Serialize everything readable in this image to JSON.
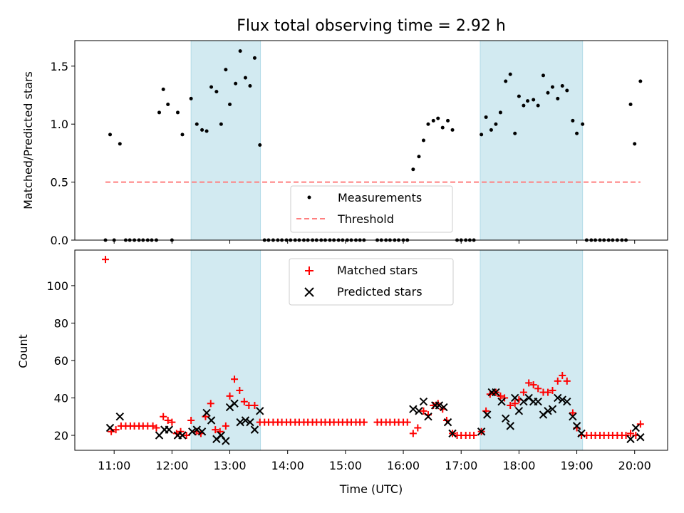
{
  "chart_data": {
    "title": "Flux total observing time = 2.92 h",
    "xlabel": "Time (UTC)",
    "x_ticks": [
      "11:00",
      "12:00",
      "13:00",
      "14:00",
      "15:00",
      "16:00",
      "17:00",
      "18:00",
      "19:00",
      "20:00"
    ],
    "x_range_hours": [
      10.32,
      20.57
    ],
    "shaded_intervals_hours": [
      [
        12.33,
        13.53
      ],
      [
        17.33,
        19.1
      ]
    ],
    "shade_color": "#add8e6",
    "top": {
      "type": "scatter",
      "ylabel": "Matched/Predicted stars",
      "ylim": [
        0,
        1.72
      ],
      "yticks": [
        "0.0",
        "0.5",
        "1.0",
        "1.5"
      ],
      "legend": {
        "placement": "lower-center",
        "items": [
          "Measurements",
          "Threshold"
        ]
      },
      "threshold": {
        "name": "Threshold",
        "value": 0.5,
        "x_range": [
          10.85,
          20.1
        ],
        "color": "#ff7f7f"
      },
      "measurements": {
        "name": "Measurements",
        "color": "#000000",
        "points": [
          [
            10.85,
            0
          ],
          [
            10.93,
            0.91
          ],
          [
            11.0,
            0
          ],
          [
            11.1,
            0.83
          ],
          [
            11.2,
            0
          ],
          [
            11.27,
            0
          ],
          [
            11.35,
            0
          ],
          [
            11.43,
            0
          ],
          [
            11.5,
            0
          ],
          [
            11.58,
            0
          ],
          [
            11.65,
            0
          ],
          [
            11.73,
            0
          ],
          [
            11.78,
            1.1
          ],
          [
            11.85,
            1.3
          ],
          [
            11.93,
            1.17
          ],
          [
            12.0,
            0
          ],
          [
            12.1,
            1.1
          ],
          [
            12.18,
            0.91
          ],
          [
            12.33,
            1.22
          ],
          [
            12.43,
            1.0
          ],
          [
            12.52,
            0.95
          ],
          [
            12.6,
            0.94
          ],
          [
            12.68,
            1.32
          ],
          [
            12.77,
            1.28
          ],
          [
            12.85,
            1.0
          ],
          [
            12.93,
            1.47
          ],
          [
            13.0,
            1.17
          ],
          [
            13.1,
            1.35
          ],
          [
            13.18,
            1.63
          ],
          [
            13.27,
            1.4
          ],
          [
            13.35,
            1.33
          ],
          [
            13.43,
            1.57
          ],
          [
            13.52,
            0.82
          ],
          [
            13.6,
            0
          ],
          [
            13.67,
            0
          ],
          [
            13.75,
            0
          ],
          [
            13.83,
            0
          ],
          [
            13.9,
            0
          ],
          [
            13.98,
            0
          ],
          [
            14.05,
            0
          ],
          [
            14.13,
            0
          ],
          [
            14.2,
            0
          ],
          [
            14.28,
            0
          ],
          [
            14.35,
            0
          ],
          [
            14.43,
            0
          ],
          [
            14.5,
            0
          ],
          [
            14.58,
            0
          ],
          [
            14.65,
            0
          ],
          [
            14.73,
            0
          ],
          [
            14.8,
            0
          ],
          [
            14.88,
            0
          ],
          [
            14.95,
            0
          ],
          [
            15.03,
            0
          ],
          [
            15.1,
            0
          ],
          [
            15.18,
            0
          ],
          [
            15.25,
            0
          ],
          [
            15.32,
            0
          ],
          [
            15.55,
            0
          ],
          [
            15.62,
            0
          ],
          [
            15.7,
            0
          ],
          [
            15.77,
            0
          ],
          [
            15.85,
            0
          ],
          [
            15.92,
            0
          ],
          [
            16.0,
            0
          ],
          [
            16.07,
            0
          ],
          [
            16.17,
            0.61
          ],
          [
            16.27,
            0.72
          ],
          [
            16.35,
            0.86
          ],
          [
            16.43,
            1.0
          ],
          [
            16.52,
            1.03
          ],
          [
            16.6,
            1.05
          ],
          [
            16.68,
            0.97
          ],
          [
            16.77,
            1.03
          ],
          [
            16.85,
            0.95
          ],
          [
            16.93,
            0
          ],
          [
            17.0,
            0
          ],
          [
            17.08,
            0
          ],
          [
            17.15,
            0
          ],
          [
            17.22,
            0
          ],
          [
            17.35,
            0.91
          ],
          [
            17.43,
            1.06
          ],
          [
            17.52,
            0.95
          ],
          [
            17.6,
            1.0
          ],
          [
            17.68,
            1.1
          ],
          [
            17.77,
            1.37
          ],
          [
            17.85,
            1.43
          ],
          [
            17.93,
            0.92
          ],
          [
            18.0,
            1.24
          ],
          [
            18.08,
            1.16
          ],
          [
            18.15,
            1.2
          ],
          [
            18.25,
            1.21
          ],
          [
            18.33,
            1.16
          ],
          [
            18.42,
            1.42
          ],
          [
            18.5,
            1.27
          ],
          [
            18.58,
            1.32
          ],
          [
            18.67,
            1.22
          ],
          [
            18.75,
            1.33
          ],
          [
            18.83,
            1.29
          ],
          [
            18.93,
            1.03
          ],
          [
            19.0,
            0.92
          ],
          [
            19.1,
            1.0
          ],
          [
            19.17,
            0
          ],
          [
            19.25,
            0
          ],
          [
            19.32,
            0
          ],
          [
            19.4,
            0
          ],
          [
            19.47,
            0
          ],
          [
            19.55,
            0
          ],
          [
            19.62,
            0
          ],
          [
            19.7,
            0
          ],
          [
            19.78,
            0
          ],
          [
            19.85,
            0
          ],
          [
            19.93,
            1.17
          ],
          [
            20.0,
            0.83
          ],
          [
            20.1,
            1.37
          ]
        ]
      }
    },
    "bottom": {
      "type": "scatter",
      "ylabel": "Count",
      "ylim": [
        12,
        119
      ],
      "yticks": [
        "20",
        "40",
        "60",
        "80",
        "100"
      ],
      "legend": {
        "placement": "upper-center",
        "items": [
          "Matched stars",
          "Predicted stars"
        ]
      },
      "series": [
        {
          "name": "Matched stars",
          "marker": "plus",
          "color": "#ff0000",
          "points": [
            [
              10.85,
              114
            ],
            [
              10.95,
              22
            ],
            [
              11.03,
              23
            ],
            [
              11.12,
              25
            ],
            [
              11.2,
              25
            ],
            [
              11.28,
              25
            ],
            [
              11.35,
              25
            ],
            [
              11.43,
              25
            ],
            [
              11.5,
              25
            ],
            [
              11.58,
              25
            ],
            [
              11.67,
              25
            ],
            [
              11.73,
              24
            ],
            [
              11.85,
              30
            ],
            [
              11.93,
              28
            ],
            [
              12.0,
              27
            ],
            [
              12.08,
              21
            ],
            [
              12.15,
              22
            ],
            [
              12.25,
              20
            ],
            [
              12.33,
              28
            ],
            [
              12.42,
              22
            ],
            [
              12.5,
              21
            ],
            [
              12.58,
              30
            ],
            [
              12.67,
              37
            ],
            [
              12.75,
              23
            ],
            [
              12.83,
              22
            ],
            [
              12.93,
              25
            ],
            [
              13.0,
              41
            ],
            [
              13.08,
              50
            ],
            [
              13.17,
              44
            ],
            [
              13.25,
              38
            ],
            [
              13.33,
              36
            ],
            [
              13.43,
              36
            ],
            [
              13.52,
              27
            ],
            [
              13.6,
              27
            ],
            [
              13.67,
              27
            ],
            [
              13.75,
              27
            ],
            [
              13.83,
              27
            ],
            [
              13.9,
              27
            ],
            [
              13.98,
              27
            ],
            [
              14.05,
              27
            ],
            [
              14.13,
              27
            ],
            [
              14.2,
              27
            ],
            [
              14.28,
              27
            ],
            [
              14.35,
              27
            ],
            [
              14.43,
              27
            ],
            [
              14.5,
              27
            ],
            [
              14.58,
              27
            ],
            [
              14.65,
              27
            ],
            [
              14.73,
              27
            ],
            [
              14.8,
              27
            ],
            [
              14.88,
              27
            ],
            [
              14.95,
              27
            ],
            [
              15.03,
              27
            ],
            [
              15.1,
              27
            ],
            [
              15.18,
              27
            ],
            [
              15.25,
              27
            ],
            [
              15.32,
              27
            ],
            [
              15.55,
              27
            ],
            [
              15.62,
              27
            ],
            [
              15.7,
              27
            ],
            [
              15.77,
              27
            ],
            [
              15.85,
              27
            ],
            [
              15.92,
              27
            ],
            [
              16.0,
              27
            ],
            [
              16.07,
              27
            ],
            [
              16.17,
              21
            ],
            [
              16.25,
              24
            ],
            [
              16.35,
              33
            ],
            [
              16.43,
              31
            ],
            [
              16.52,
              36
            ],
            [
              16.6,
              37
            ],
            [
              16.68,
              34
            ],
            [
              16.75,
              28
            ],
            [
              16.85,
              21
            ],
            [
              16.93,
              20
            ],
            [
              17.0,
              20
            ],
            [
              17.08,
              20
            ],
            [
              17.15,
              20
            ],
            [
              17.22,
              20
            ],
            [
              17.35,
              22
            ],
            [
              17.43,
              33
            ],
            [
              17.5,
              42
            ],
            [
              17.6,
              43
            ],
            [
              17.68,
              41
            ],
            [
              17.75,
              40
            ],
            [
              17.85,
              36
            ],
            [
              17.93,
              37
            ],
            [
              18.0,
              39
            ],
            [
              18.08,
              43
            ],
            [
              18.17,
              48
            ],
            [
              18.25,
              47
            ],
            [
              18.33,
              45
            ],
            [
              18.42,
              43
            ],
            [
              18.5,
              43
            ],
            [
              18.58,
              44
            ],
            [
              18.67,
              49
            ],
            [
              18.75,
              52
            ],
            [
              18.83,
              49
            ],
            [
              18.93,
              32
            ],
            [
              19.0,
              24
            ],
            [
              19.08,
              20
            ],
            [
              19.17,
              20
            ],
            [
              19.25,
              20
            ],
            [
              19.32,
              20
            ],
            [
              19.4,
              20
            ],
            [
              19.47,
              20
            ],
            [
              19.55,
              20
            ],
            [
              19.62,
              20
            ],
            [
              19.7,
              20
            ],
            [
              19.78,
              20
            ],
            [
              19.85,
              20
            ],
            [
              19.93,
              21
            ],
            [
              20.02,
              20
            ],
            [
              20.1,
              26
            ]
          ]
        },
        {
          "name": "Predicted stars",
          "marker": "x",
          "color": "#000000",
          "points": [
            [
              10.93,
              24
            ],
            [
              11.1,
              30
            ],
            [
              11.78,
              20
            ],
            [
              11.87,
              23
            ],
            [
              11.95,
              23
            ],
            [
              12.1,
              20
            ],
            [
              12.18,
              20
            ],
            [
              12.35,
              22
            ],
            [
              12.43,
              23
            ],
            [
              12.52,
              22
            ],
            [
              12.6,
              32
            ],
            [
              12.68,
              28
            ],
            [
              12.77,
              18
            ],
            [
              12.85,
              20
            ],
            [
              12.93,
              17
            ],
            [
              13.0,
              35
            ],
            [
              13.08,
              37
            ],
            [
              13.18,
              27
            ],
            [
              13.27,
              28
            ],
            [
              13.35,
              27
            ],
            [
              13.43,
              23
            ],
            [
              13.52,
              33
            ],
            [
              16.17,
              34
            ],
            [
              16.27,
              33
            ],
            [
              16.35,
              38
            ],
            [
              16.43,
              30
            ],
            [
              16.55,
              36
            ],
            [
              16.62,
              36
            ],
            [
              16.7,
              35
            ],
            [
              16.77,
              27
            ],
            [
              16.85,
              21
            ],
            [
              17.35,
              22
            ],
            [
              17.45,
              31
            ],
            [
              17.53,
              43
            ],
            [
              17.6,
              43
            ],
            [
              17.7,
              38
            ],
            [
              17.77,
              29
            ],
            [
              17.85,
              25
            ],
            [
              17.93,
              40
            ],
            [
              18.0,
              33
            ],
            [
              18.08,
              38
            ],
            [
              18.17,
              40
            ],
            [
              18.25,
              38
            ],
            [
              18.33,
              38
            ],
            [
              18.42,
              31
            ],
            [
              18.5,
              33
            ],
            [
              18.58,
              34
            ],
            [
              18.67,
              40
            ],
            [
              18.75,
              39
            ],
            [
              18.83,
              38
            ],
            [
              18.93,
              30
            ],
            [
              19.0,
              25
            ],
            [
              19.08,
              21
            ],
            [
              19.93,
              18
            ],
            [
              20.02,
              24
            ],
            [
              20.1,
              19
            ]
          ]
        }
      ]
    }
  }
}
